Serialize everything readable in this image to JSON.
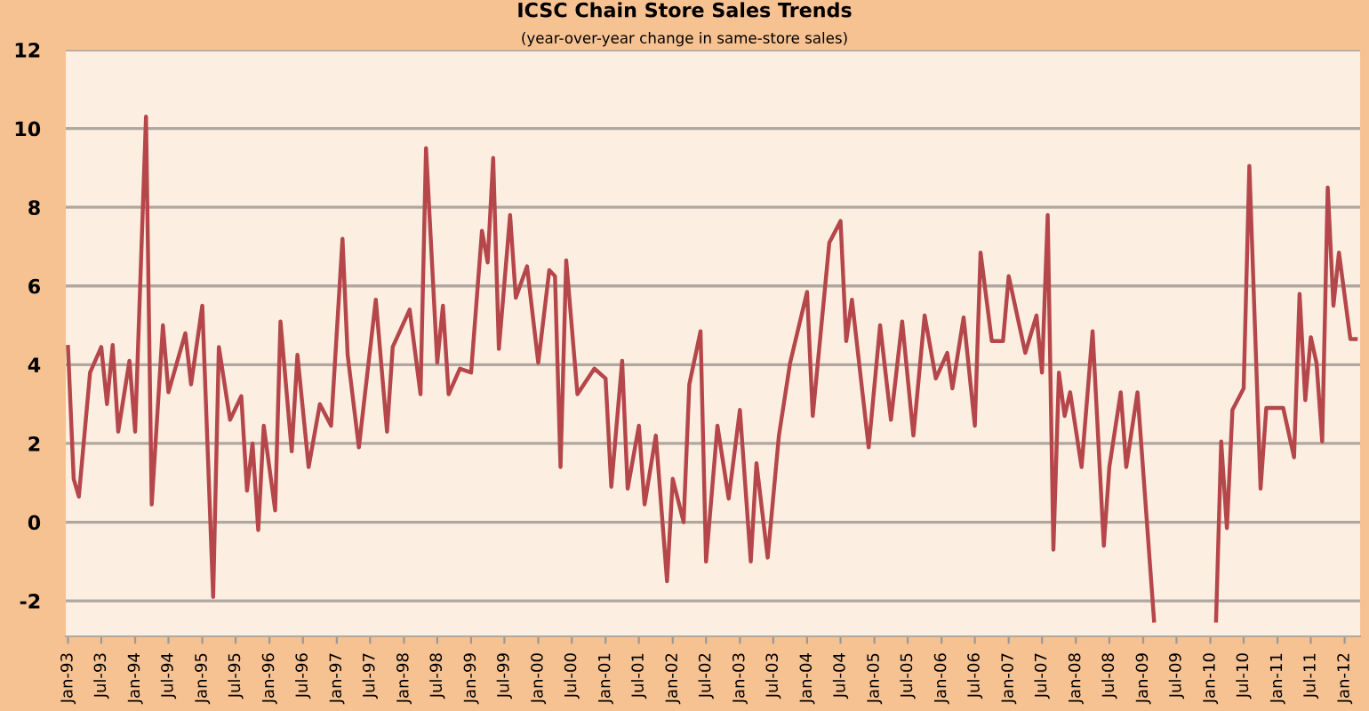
{
  "chart_data": {
    "type": "line",
    "title": "ICSC Chain Store Sales Trends",
    "subtitle": "(year-over-year change in same-store sales)",
    "x": [
      "1993-01",
      "1993-02",
      "1993-03",
      "1993-05",
      "1993-07",
      "1993-08",
      "1993-09",
      "1993-10",
      "1993-12",
      "1994-01",
      "1994-03",
      "1994-04",
      "1994-06",
      "1994-07",
      "1994-10",
      "1994-11",
      "1995-01",
      "1995-03",
      "1995-04",
      "1995-06",
      "1995-08",
      "1995-09",
      "1995-10",
      "1995-11",
      "1995-12",
      "1996-02",
      "1996-03",
      "1996-05",
      "1996-06",
      "1996-08",
      "1996-10",
      "1996-12",
      "1997-02",
      "1997-03",
      "1997-05",
      "1997-08",
      "1997-10",
      "1997-11",
      "1998-02",
      "1998-04",
      "1998-05",
      "1998-07",
      "1998-08",
      "1998-09",
      "1998-11",
      "1999-01",
      "1999-03",
      "1999-04",
      "1999-05",
      "1999-06",
      "1999-08",
      "1999-09",
      "1999-11",
      "2000-01",
      "2000-03",
      "2000-04",
      "2000-05",
      "2000-06",
      "2000-08",
      "2000-11",
      "2001-01",
      "2001-02",
      "2001-04",
      "2001-05",
      "2001-07",
      "2001-08",
      "2001-10",
      "2001-12",
      "2002-01",
      "2002-03",
      "2002-04",
      "2002-06",
      "2002-07",
      "2002-09",
      "2002-11",
      "2003-01",
      "2003-03",
      "2003-04",
      "2003-06",
      "2003-08",
      "2003-10",
      "2004-01",
      "2004-02",
      "2004-05",
      "2004-07",
      "2004-08",
      "2004-09",
      "2004-12",
      "2005-02",
      "2005-04",
      "2005-06",
      "2005-08",
      "2005-10",
      "2005-12",
      "2006-02",
      "2006-03",
      "2006-05",
      "2006-07",
      "2006-08",
      "2006-10",
      "2006-12",
      "2007-01",
      "2007-04",
      "2007-06",
      "2007-07",
      "2007-08",
      "2007-09",
      "2007-10",
      "2007-11",
      "2007-12",
      "2008-02",
      "2008-04",
      "2008-06",
      "2008-07",
      "2008-09",
      "2008-10",
      "2008-12",
      "2009-03",
      "2009-04",
      "2010-02",
      "2010-03",
      "2010-04",
      "2010-05",
      "2010-07",
      "2010-08",
      "2010-10",
      "2010-11",
      "2011-02",
      "2011-04",
      "2011-05",
      "2011-06",
      "2011-07",
      "2011-08",
      "2011-09",
      "2011-10",
      "2011-11",
      "2011-12",
      "2012-02",
      "2012-03"
    ],
    "series": [
      {
        "color": "#b5474b",
        "values": [
          4.45,
          1.1,
          0.65,
          3.8,
          4.45,
          3.0,
          4.5,
          2.3,
          4.1,
          2.3,
          10.3,
          0.45,
          5.0,
          3.3,
          4.8,
          3.5,
          5.5,
          -1.9,
          4.45,
          2.6,
          3.2,
          0.8,
          2.0,
          -0.2,
          2.45,
          0.3,
          5.1,
          1.8,
          4.25,
          1.4,
          3.0,
          2.45,
          7.2,
          4.25,
          1.9,
          5.65,
          2.3,
          4.45,
          5.4,
          3.25,
          9.5,
          4.05,
          5.5,
          3.25,
          3.9,
          3.8,
          7.4,
          6.6,
          9.25,
          4.4,
          7.8,
          5.7,
          6.5,
          4.05,
          6.4,
          6.25,
          1.4,
          6.65,
          3.25,
          3.9,
          3.65,
          0.9,
          4.1,
          0.85,
          2.45,
          0.45,
          2.2,
          -1.5,
          1.1,
          0.0,
          3.5,
          4.85,
          -1.0,
          2.45,
          0.6,
          2.85,
          -1.0,
          1.5,
          -0.9,
          2.2,
          4.05,
          5.85,
          2.7,
          7.1,
          7.65,
          4.6,
          5.65,
          1.9,
          5.0,
          2.6,
          5.1,
          2.2,
          5.25,
          3.65,
          4.3,
          3.4,
          5.2,
          2.45,
          6.85,
          4.6,
          4.6,
          6.25,
          4.3,
          5.25,
          3.8,
          7.8,
          -0.7,
          3.8,
          2.7,
          3.3,
          1.4,
          4.85,
          -0.6,
          1.4,
          3.3,
          1.4,
          3.3,
          -2.5,
          null,
          -2.5,
          2.05,
          -0.15,
          2.85,
          3.4,
          9.05,
          0.85,
          2.9,
          2.9,
          1.65,
          5.8,
          3.1,
          4.7,
          4.05,
          2.05,
          8.5,
          5.5,
          6.85,
          4.65,
          4.65
        ]
      }
    ],
    "xlim": [
      "1992-12-20",
      "2012-03-25"
    ],
    "xticks": [
      {
        "value": "1993-01",
        "label": "Jan-93"
      },
      {
        "value": "1993-07",
        "label": "Jul-93"
      },
      {
        "value": "1994-01",
        "label": "Jan-94"
      },
      {
        "value": "1994-07",
        "label": "Jul-94"
      },
      {
        "value": "1995-01",
        "label": "Jan-95"
      },
      {
        "value": "1995-07",
        "label": "Jul-95"
      },
      {
        "value": "1996-01",
        "label": "Jan-96"
      },
      {
        "value": "1996-07",
        "label": "Jul-96"
      },
      {
        "value": "1997-01",
        "label": "Jan-97"
      },
      {
        "value": "1997-07",
        "label": "Jul-97"
      },
      {
        "value": "1998-01",
        "label": "Jan-98"
      },
      {
        "value": "1998-07",
        "label": "Jul-98"
      },
      {
        "value": "1999-01",
        "label": "Jan-99"
      },
      {
        "value": "1999-07",
        "label": "Jul-99"
      },
      {
        "value": "2000-01",
        "label": "Jan-00"
      },
      {
        "value": "2000-07",
        "label": "Jul-00"
      },
      {
        "value": "2001-01",
        "label": "Jan-01"
      },
      {
        "value": "2001-07",
        "label": "Jul-01"
      },
      {
        "value": "2002-01",
        "label": "Jan-02"
      },
      {
        "value": "2002-07",
        "label": "Jul-02"
      },
      {
        "value": "2003-01",
        "label": "Jan-03"
      },
      {
        "value": "2003-07",
        "label": "Jul-03"
      },
      {
        "value": "2004-01",
        "label": "Jan-04"
      },
      {
        "value": "2004-07",
        "label": "Jul-04"
      },
      {
        "value": "2005-01",
        "label": "Jan-05"
      },
      {
        "value": "2005-07",
        "label": "Jul-05"
      },
      {
        "value": "2006-01",
        "label": "Jan-06"
      },
      {
        "value": "2006-07",
        "label": "Jul-06"
      },
      {
        "value": "2007-01",
        "label": "Jan-07"
      },
      {
        "value": "2007-07",
        "label": "Jul-07"
      },
      {
        "value": "2008-01",
        "label": "Jan-08"
      },
      {
        "value": "2008-07",
        "label": "Jul-08"
      },
      {
        "value": "2009-01",
        "label": "Jan-09"
      },
      {
        "value": "2009-07",
        "label": "Jul-09"
      },
      {
        "value": "2010-01",
        "label": "Jan-10"
      },
      {
        "value": "2010-07",
        "label": "Jul-10"
      },
      {
        "value": "2011-01",
        "label": "Jan-11"
      },
      {
        "value": "2011-07",
        "label": "Jul-11"
      },
      {
        "value": "2012-01",
        "label": "Jan-12"
      }
    ],
    "ylim": [
      -2.9,
      12
    ],
    "yticks": [
      -2,
      0,
      2,
      4,
      6,
      8,
      10,
      12
    ],
    "grid": "y",
    "legend": false,
    "marker": "none",
    "line_style": "solid"
  }
}
